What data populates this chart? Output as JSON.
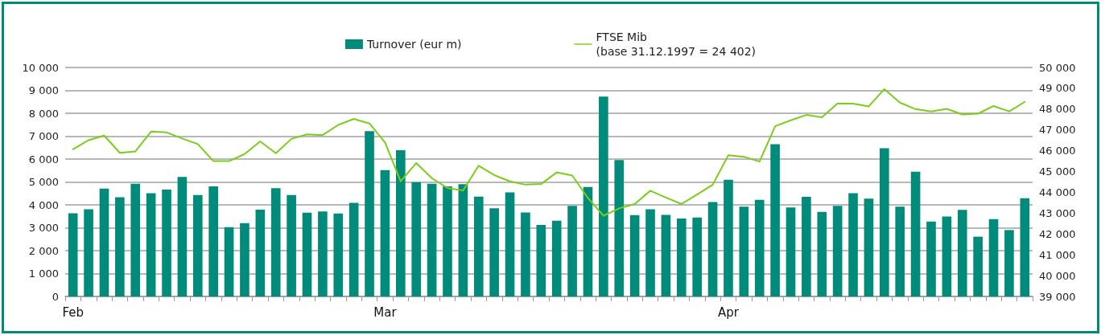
{
  "chart_data": {
    "type": "bar",
    "categories": [
      "Feb",
      null,
      null,
      null,
      null,
      null,
      null,
      null,
      null,
      null,
      null,
      null,
      null,
      null,
      null,
      null,
      null,
      null,
      null,
      null,
      "Mar",
      null,
      null,
      null,
      null,
      null,
      null,
      null,
      null,
      null,
      null,
      null,
      null,
      null,
      null,
      null,
      null,
      null,
      null,
      null,
      null,
      null,
      "Apr",
      null,
      null,
      null,
      null,
      null,
      null,
      null,
      null,
      null,
      null,
      null,
      null,
      null,
      null,
      null,
      null,
      null,
      null,
      null
    ],
    "series": [
      {
        "name": "Turnover (eur m)",
        "color": "#008b7a",
        "values": [
          3630,
          3810,
          4710,
          4330,
          4920,
          4510,
          4670,
          5220,
          4430,
          4810,
          3030,
          3200,
          3790,
          4730,
          4430,
          3660,
          3710,
          3620,
          4090,
          7220,
          5520,
          6390,
          4990,
          4920,
          4810,
          4900,
          4360,
          3850,
          4540,
          3670,
          3120,
          3310,
          3960,
          4780,
          8730,
          5960,
          3550,
          3810,
          3560,
          3400,
          3450,
          4120,
          5100,
          3920,
          4220,
          6650,
          3890,
          4350,
          3690,
          3960,
          4510,
          4270,
          6470,
          3920,
          5450,
          3270,
          3490,
          3780,
          2610,
          3380,
          2900,
          4290
        ]
      },
      {
        "name": "FTSE Mib\n(base 31.12.1997 = 24 402)",
        "type": "line",
        "axis": "y2",
        "color": "#7ccc1c",
        "values": [
          46070,
          46510,
          46730,
          45900,
          45970,
          46920,
          46880,
          46590,
          46320,
          45500,
          45500,
          45840,
          46450,
          45880,
          46570,
          46790,
          46750,
          47240,
          47530,
          47310,
          46400,
          44530,
          45410,
          44680,
          44210,
          44090,
          45280,
          44830,
          44530,
          44370,
          44400,
          44960,
          44810,
          43730,
          42880,
          43230,
          43440,
          44080,
          43750,
          43440,
          43900,
          44370,
          45780,
          45710,
          45480,
          47180,
          47460,
          47720,
          47610,
          48270,
          48260,
          48130,
          48960,
          48310,
          48000,
          47890,
          48010,
          47740,
          47780,
          48150,
          47890,
          48350
        ]
      }
    ],
    "ylim": [
      0,
      10000
    ],
    "yticks": [
      0,
      {
        "value": 1000,
        "label": "1 000"
      },
      {
        "value": 2000,
        "label": "2 000"
      },
      {
        "value": 3000,
        "label": "3 000"
      },
      {
        "value": 4000,
        "label": "4 000"
      },
      {
        "value": 5000,
        "label": "5 000"
      },
      {
        "value": 6000,
        "label": "6 000"
      },
      {
        "value": 7000,
        "label": "7 000"
      },
      {
        "value": 8000,
        "label": "8 000"
      },
      {
        "value": 9000,
        "label": "9 000"
      },
      {
        "value": 10000,
        "label": "10 000"
      }
    ],
    "y2lim": [
      39000,
      50000
    ],
    "y2ticks": [
      {
        "value": 39000,
        "label": "39 000"
      },
      {
        "value": 40000,
        "label": "40 000"
      },
      {
        "value": 41000,
        "label": "41 000"
      },
      {
        "value": 42000,
        "label": "42 000"
      },
      {
        "value": 43000,
        "label": "43 000"
      },
      {
        "value": 44000,
        "label": "44 000"
      },
      {
        "value": 45000,
        "label": "45 000"
      },
      {
        "value": 46000,
        "label": "46 000"
      },
      {
        "value": 47000,
        "label": "47 000"
      },
      {
        "value": 48000,
        "label": "48 000"
      },
      {
        "value": 49000,
        "label": "49 000"
      },
      {
        "value": 50000,
        "label": "50 000"
      }
    ],
    "grid": "y",
    "legend": "top",
    "marker": "none",
    "line_style": "solid"
  }
}
